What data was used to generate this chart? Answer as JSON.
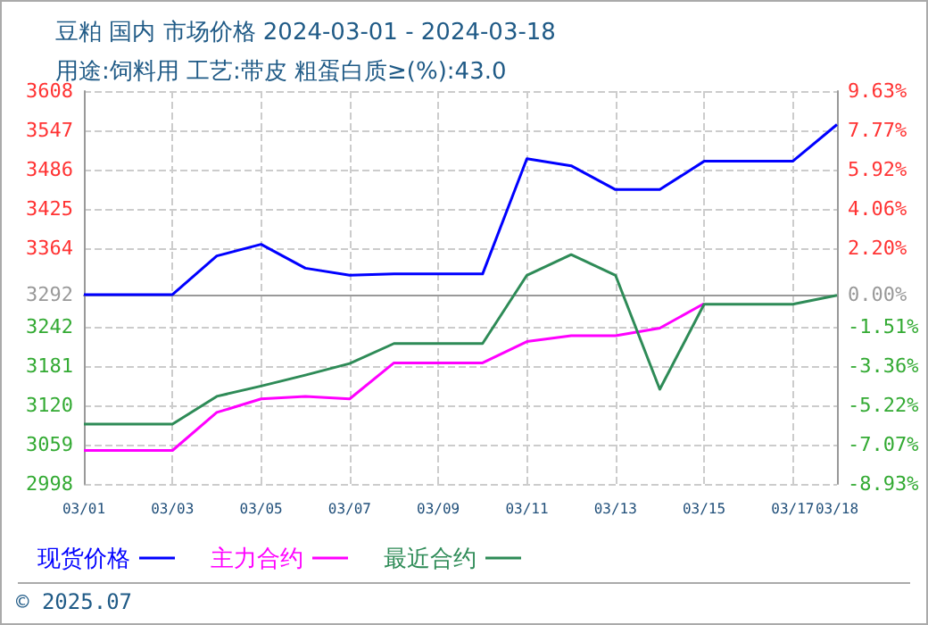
{
  "chart_data": {
    "type": "line",
    "title": "豆粕 国内 市场价格 2024-03-01 - 2024-03-18",
    "subtitle": "用途:饲料用 工艺:带皮 粗蛋白质≥(%):43.0",
    "x": [
      "2024-03-01",
      "2024-03-02",
      "2024-03-03",
      "2024-03-04",
      "2024-03-05",
      "2024-03-06",
      "2024-03-07",
      "2024-03-08",
      "2024-03-09",
      "2024-03-10",
      "2024-03-11",
      "2024-03-12",
      "2024-03-13",
      "2024-03-14",
      "2024-03-15",
      "2024-03-16",
      "2024-03-17",
      "2024-03-18"
    ],
    "series": [
      {
        "name": "现货价格",
        "color": "#0000ff",
        "values": [
          3292,
          3292,
          3292,
          3352,
          3370,
          3333,
          3322,
          3324,
          3324,
          3324,
          3503,
          3492,
          3455,
          3455,
          3499,
          3499,
          3499,
          3556
        ]
      },
      {
        "name": "主力合约",
        "color": "#ff00ff",
        "values": [
          3050,
          3050,
          3050,
          3109,
          3130,
          3134,
          3130,
          3186,
          3186,
          3186,
          3219,
          3228,
          3228,
          3240,
          3278,
          null,
          null,
          null
        ]
      },
      {
        "name": "最近合约",
        "color": "#2e8b57",
        "values": [
          3091,
          3091,
          3091,
          3134,
          3150,
          3167,
          3185,
          3216,
          3216,
          3216,
          3322,
          3354,
          3322,
          3145,
          3277,
          3277,
          3277,
          3291
        ]
      }
    ],
    "xlim": [
      "2024-03-01",
      "2024-03-18"
    ],
    "xticks": [
      {
        "value": "2024-03-01",
        "label": "03/01"
      },
      {
        "value": "2024-03-03",
        "label": "03/03"
      },
      {
        "value": "2024-03-05",
        "label": "03/05"
      },
      {
        "value": "2024-03-07",
        "label": "03/07"
      },
      {
        "value": "2024-03-09",
        "label": "03/09"
      },
      {
        "value": "2024-03-11",
        "label": "03/11"
      },
      {
        "value": "2024-03-13",
        "label": "03/13"
      },
      {
        "value": "2024-03-15",
        "label": "03/15"
      },
      {
        "value": "2024-03-17",
        "label": "03/17"
      },
      {
        "value": "2024-03-18",
        "label": "03/18"
      }
    ],
    "ylim": [
      2998,
      3608
    ],
    "yticks": [
      2998,
      3059,
      3120,
      3181,
      3242,
      3292,
      3364,
      3425,
      3486,
      3547,
      3608
    ],
    "y2lim": [
      -8.93,
      9.63
    ],
    "y2ticks": [
      {
        "value": -8.93,
        "label": "-8.93%"
      },
      {
        "value": -7.07,
        "label": "-7.07%"
      },
      {
        "value": -5.22,
        "label": "-5.22%"
      },
      {
        "value": -3.36,
        "label": "-3.36%"
      },
      {
        "value": -1.51,
        "label": "-1.51%"
      },
      {
        "value": 0,
        "label": "0.00%"
      },
      {
        "value": 2.2,
        "label": "2.20%"
      },
      {
        "value": 4.06,
        "label": "4.06%"
      },
      {
        "value": 5.92,
        "label": "5.92%"
      },
      {
        "value": 7.77,
        "label": "7.77%"
      },
      {
        "value": 9.63,
        "label": "9.63%"
      }
    ],
    "ref_lines": [
      {
        "axis": "y",
        "value": 3292,
        "color": "#999999"
      }
    ],
    "annotations": [
      "© 2025.07"
    ],
    "grid": true,
    "legend": "bottom",
    "marker": "none",
    "line_style": "solid"
  }
}
